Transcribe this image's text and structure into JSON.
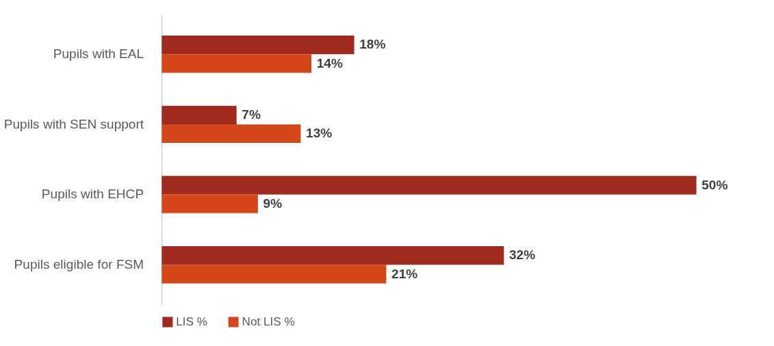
{
  "chart_data": {
    "type": "bar",
    "orientation": "horizontal",
    "categories": [
      "Pupils with EAL",
      "Pupils with SEN support",
      "Pupils with EHCP",
      "Pupils eligible for FSM"
    ],
    "series": [
      {
        "name": "LIS %",
        "color": "#9e2a20",
        "values": [
          18,
          7,
          50,
          32
        ],
        "value_labels": [
          "18%",
          "7%",
          "50%",
          "32%"
        ]
      },
      {
        "name": "Not LIS %",
        "color": "#d4471a",
        "values": [
          14,
          13,
          9,
          21
        ],
        "value_labels": [
          "14%",
          "13%",
          "9%",
          "21%"
        ]
      }
    ],
    "legend": "bottom"
  }
}
